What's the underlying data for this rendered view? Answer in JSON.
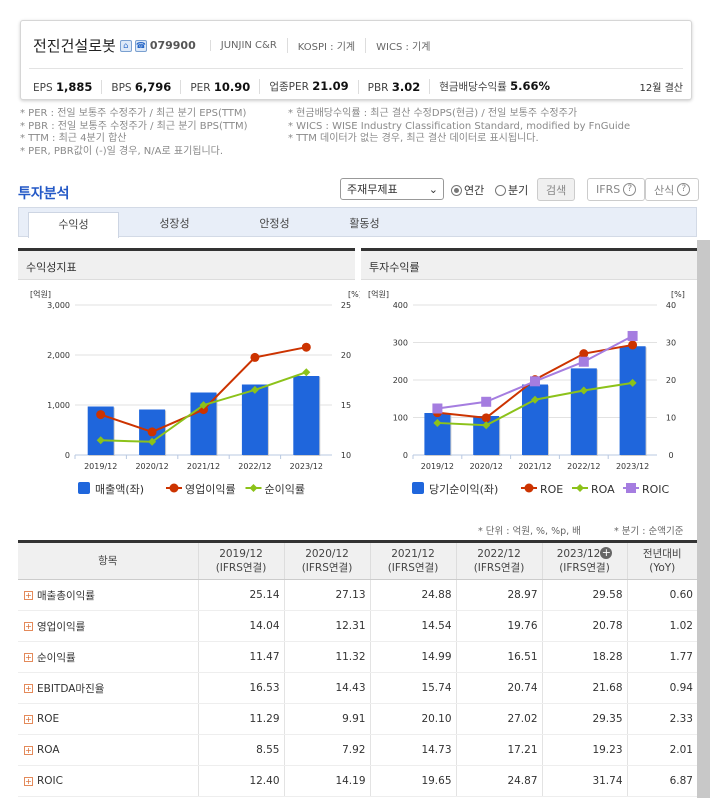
{
  "company": {
    "name": "전진건설로봇",
    "code": "079900",
    "eng": "JUNJIN C&R",
    "market": "KOSPI : 기계",
    "wics": "WICS : 기계",
    "home_icon": "⌂",
    "phone_icon": "☎"
  },
  "stats": [
    {
      "label": "EPS",
      "value": "1,885"
    },
    {
      "label": "BPS",
      "value": "6,796"
    },
    {
      "label": "PER",
      "value": "10.90"
    },
    {
      "label": "업종PER",
      "value": "21.09"
    },
    {
      "label": "PBR",
      "value": "3.02"
    },
    {
      "label": "현금배당수익률",
      "value": "5.66%"
    }
  ],
  "settlement": "12월 결산",
  "notes_left": [
    "* PER : 전일 보통주 수정주가 / 최근 분기 EPS(TTM)",
    "* PBR : 전일 보통주 수정주가 / 최근 분기 BPS(TTM)",
    "* TTM : 최근 4분기 합산",
    "* PER, PBR값이 (-)일 경우, N/A로 표기됩니다."
  ],
  "notes_right": [
    "* 현금배당수익률 : 최근 결산 수정DPS(현금) / 전일 보통주 수정주가",
    "* WICS : WISE Industry Classification Standard, modified by FnGuide",
    "* TTM 데이터가 없는 경우, 최근 결산 데이터로 표시됩니다."
  ],
  "section_title": "투자분석",
  "controls": {
    "select": "주재무제표",
    "annual": "연간",
    "quarter": "분기",
    "search": "검색",
    "ifrs": "IFRS",
    "formula": "산식",
    "help": "?"
  },
  "tabs": [
    "수익성",
    "성장성",
    "안정성",
    "활동성"
  ],
  "units": "* 단위 : 억원, %, %p, 배",
  "quarter_note": "* 분기 : 순액기준",
  "chart_data": [
    {
      "type": "bar",
      "title": "수익성지표",
      "categories": [
        "2019/12",
        "2020/12",
        "2021/12",
        "2022/12",
        "2023/12"
      ],
      "ylabel_left": "[억원]",
      "ylabel_right": "[%]",
      "ylim_left": [
        0,
        3000
      ],
      "yticks_left": [
        "0",
        "1,000",
        "2,000",
        "3,000"
      ],
      "ylim_right": [
        10,
        25
      ],
      "yticks_right": [
        "10",
        "15",
        "20",
        "25"
      ],
      "series": [
        {
          "name": "매출액(좌)",
          "kind": "bar",
          "axis": "left",
          "color": "#1f66dc",
          "values": [
            970,
            910,
            1250,
            1410,
            1580
          ]
        },
        {
          "name": "영업이익률",
          "kind": "line",
          "marker": "circle",
          "axis": "right",
          "color": "#cc3300",
          "values": [
            14.04,
            12.31,
            14.54,
            19.76,
            20.78
          ]
        },
        {
          "name": "순이익률",
          "kind": "line",
          "marker": "diamond",
          "axis": "right",
          "color": "#8cc21a",
          "values": [
            11.47,
            11.32,
            14.99,
            16.51,
            18.28
          ]
        }
      ]
    },
    {
      "type": "bar",
      "title": "투자수익률",
      "categories": [
        "2019/12",
        "2020/12",
        "2021/12",
        "2022/12",
        "2023/12"
      ],
      "ylabel_left": "[억원]",
      "ylabel_right": "[%]",
      "ylim_left": [
        0,
        400
      ],
      "yticks_left": [
        "0",
        "100",
        "200",
        "300",
        "400"
      ],
      "ylim_right": [
        0,
        40
      ],
      "yticks_right": [
        "0",
        "10",
        "20",
        "30",
        "40"
      ],
      "series": [
        {
          "name": "당기순이익(좌)",
          "kind": "bar",
          "axis": "left",
          "color": "#1f66dc",
          "values": [
            112,
            104,
            188,
            231,
            290
          ]
        },
        {
          "name": "ROE",
          "kind": "line",
          "marker": "circle",
          "axis": "right",
          "color": "#cc3300",
          "values": [
            11.29,
            9.91,
            20.1,
            27.02,
            29.35
          ]
        },
        {
          "name": "ROA",
          "kind": "line",
          "marker": "diamond",
          "axis": "right",
          "color": "#8cc21a",
          "values": [
            8.55,
            7.92,
            14.73,
            17.21,
            19.23
          ]
        },
        {
          "name": "ROIC",
          "kind": "line",
          "marker": "square",
          "axis": "right",
          "color": "#a57de0",
          "values": [
            12.4,
            14.19,
            19.65,
            24.87,
            31.74
          ]
        }
      ]
    }
  ],
  "table": {
    "headers": [
      {
        "l1": "항목",
        "l2": ""
      },
      {
        "l1": "2019/12",
        "l2": "(IFRS연결)"
      },
      {
        "l1": "2020/12",
        "l2": "(IFRS연결)"
      },
      {
        "l1": "2021/12",
        "l2": "(IFRS연결)"
      },
      {
        "l1": "2022/12",
        "l2": "(IFRS연결)"
      },
      {
        "l1": "2023/12",
        "l2": "(IFRS연결)"
      },
      {
        "l1": "전년대비",
        "l2": "(YoY)"
      }
    ],
    "rows": [
      [
        "매출총이익률",
        "25.14",
        "27.13",
        "24.88",
        "28.97",
        "29.58",
        "0.60"
      ],
      [
        "영업이익률",
        "14.04",
        "12.31",
        "14.54",
        "19.76",
        "20.78",
        "1.02"
      ],
      [
        "순이익률",
        "11.47",
        "11.32",
        "14.99",
        "16.51",
        "18.28",
        "1.77"
      ],
      [
        "EBITDA마진율",
        "16.53",
        "14.43",
        "15.74",
        "20.74",
        "21.68",
        "0.94"
      ],
      [
        "ROE",
        "11.29",
        "9.91",
        "20.10",
        "27.02",
        "29.35",
        "2.33"
      ],
      [
        "ROA",
        "8.55",
        "7.92",
        "14.73",
        "17.21",
        "19.23",
        "2.01"
      ],
      [
        "ROIC",
        "12.40",
        "14.19",
        "19.65",
        "24.87",
        "31.74",
        "6.87"
      ]
    ]
  }
}
